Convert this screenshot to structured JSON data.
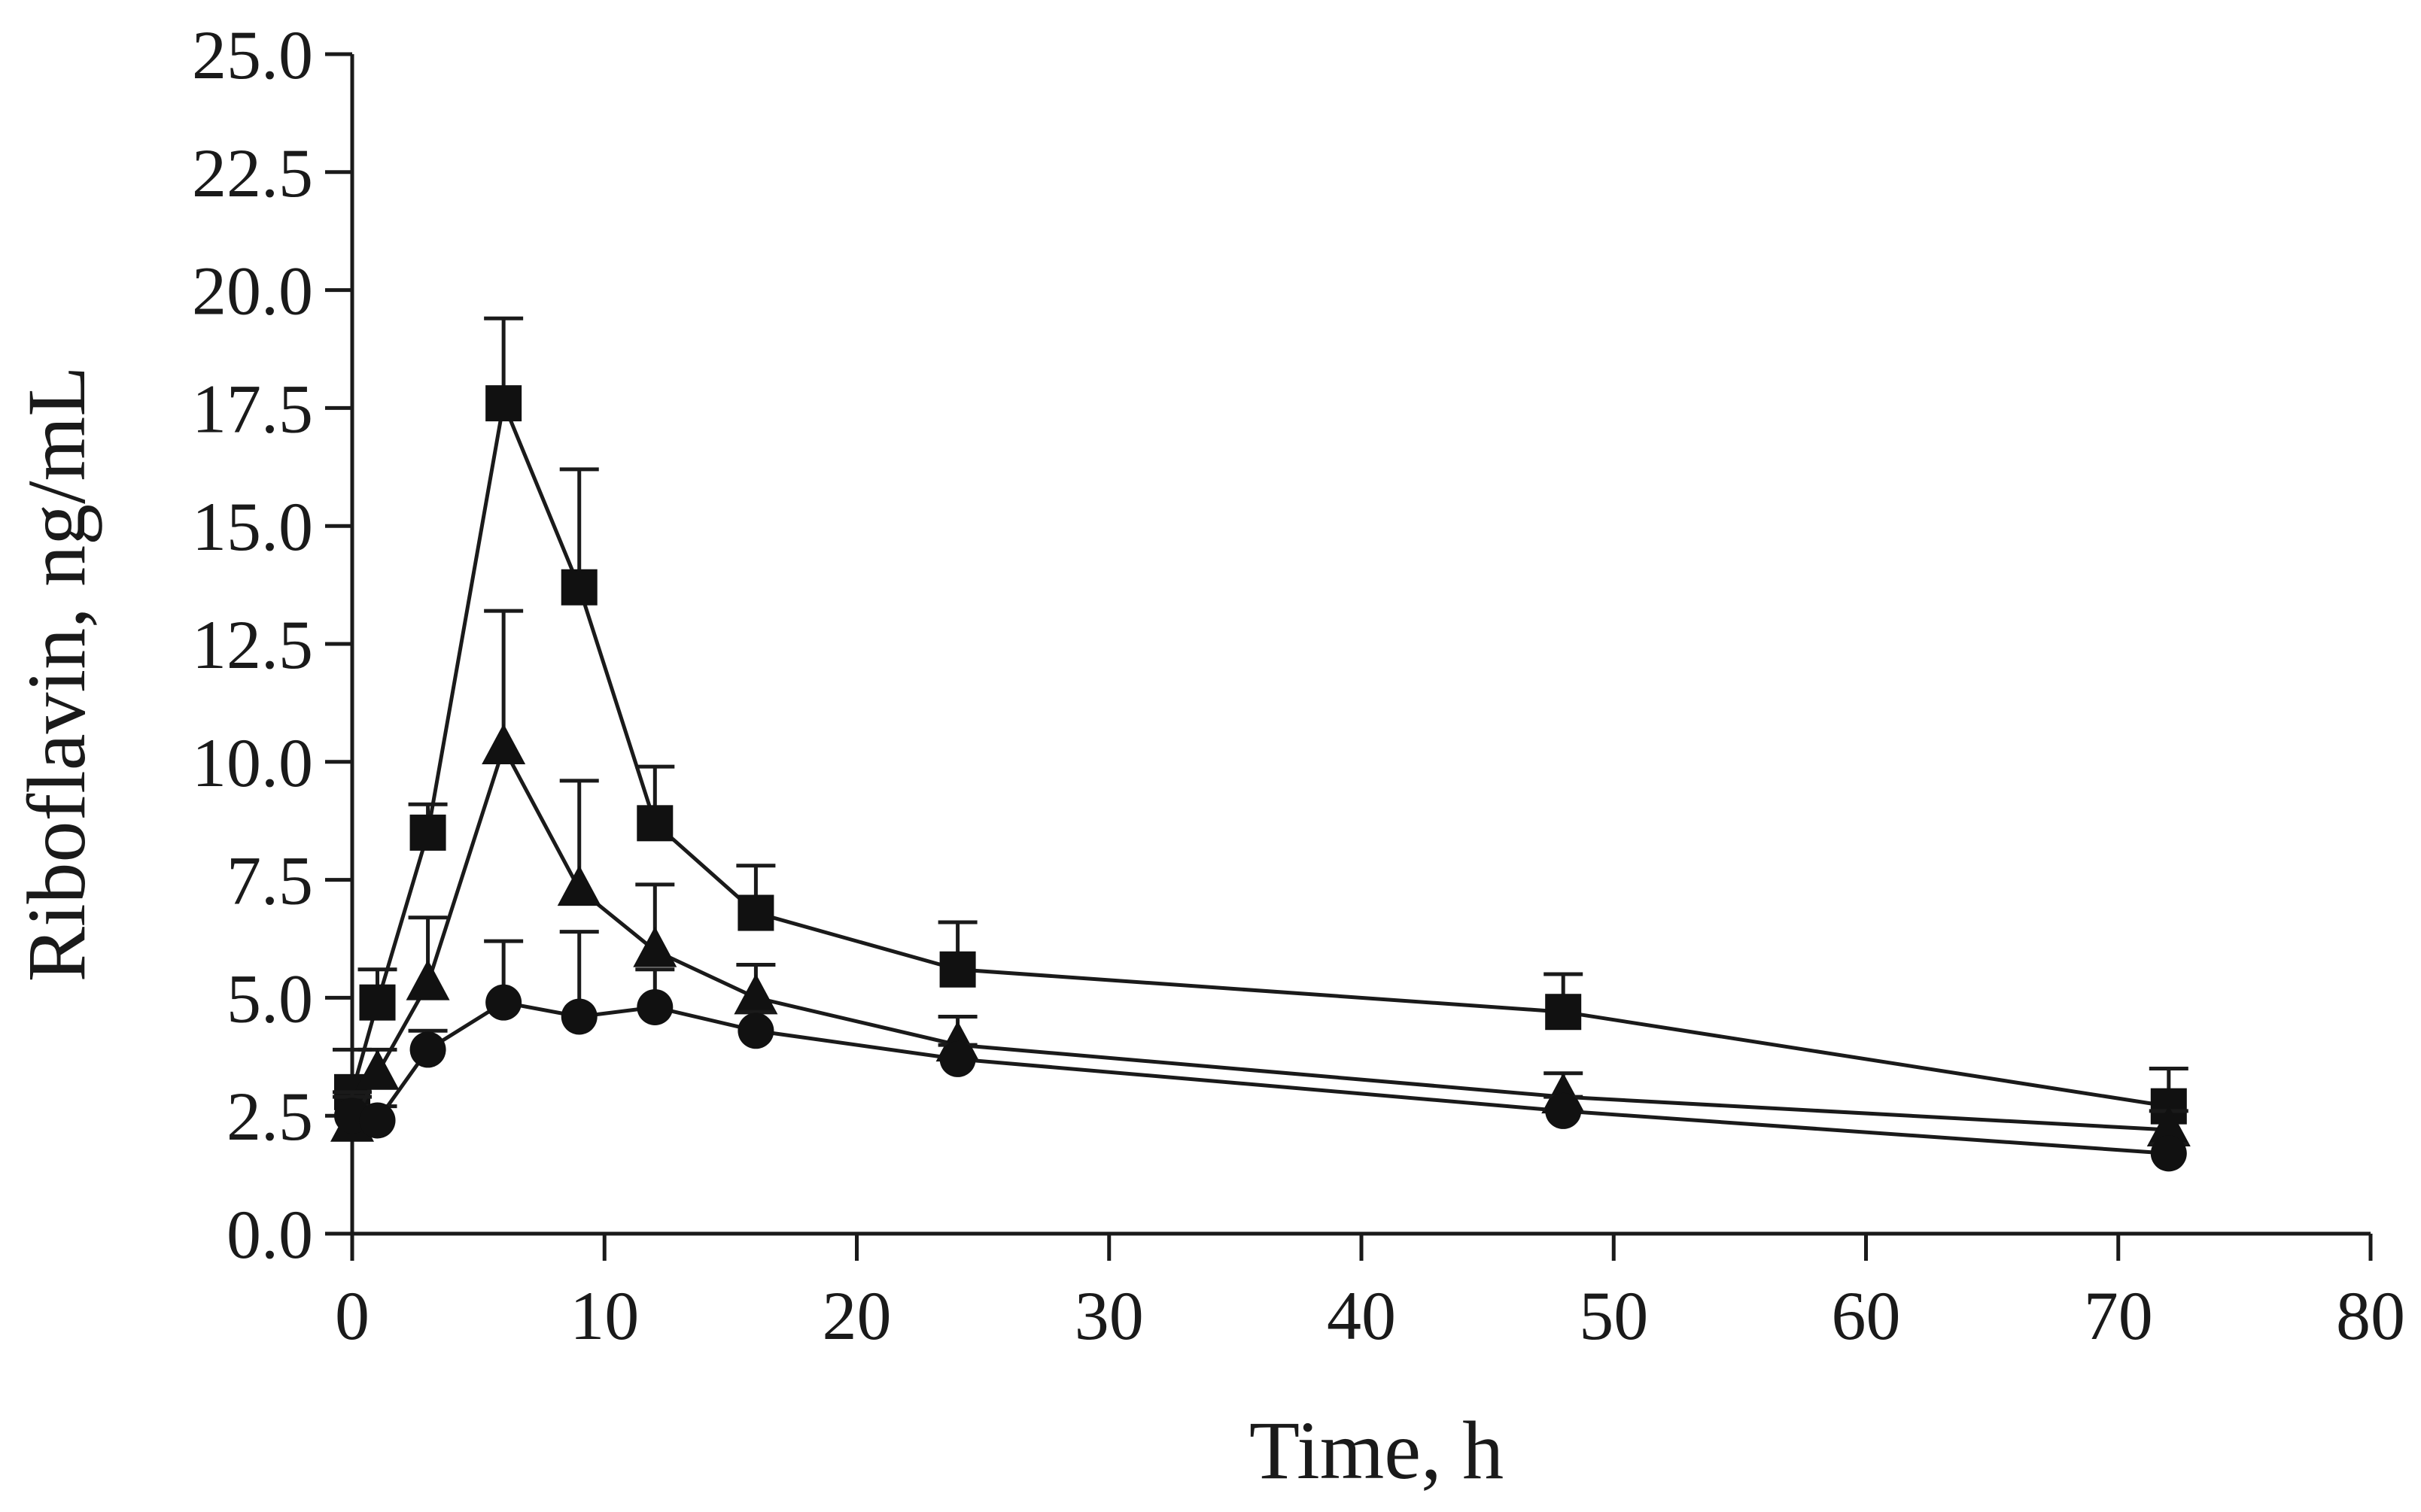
{
  "chart_data": {
    "type": "line",
    "title": "",
    "xlabel": "Time, h",
    "ylabel": "Riboflavin, ng/mL",
    "xlim": [
      0,
      80
    ],
    "ylim": [
      0,
      25
    ],
    "xticks": [
      0,
      10,
      20,
      30,
      40,
      50,
      60,
      70,
      80
    ],
    "xtick_labels": [
      "0",
      "10",
      "20",
      "30",
      "40",
      "50",
      "60",
      "70",
      "80"
    ],
    "yticks": [
      0,
      2.5,
      5,
      7.5,
      10,
      12.5,
      15,
      17.5,
      20,
      22.5,
      25
    ],
    "ytick_labels": [
      "0.0",
      "2.5",
      "5.0",
      "7.5",
      "10.0",
      "12.5",
      "15.0",
      "17.5",
      "20.0",
      "22.5",
      "25.0"
    ],
    "grid": false,
    "legend": "none",
    "x": [
      0,
      1,
      3,
      6,
      9,
      12,
      16,
      24,
      48,
      72
    ],
    "series": [
      {
        "name": "square",
        "marker": "square",
        "values": [
          3.0,
          4.9,
          8.5,
          17.6,
          13.7,
          8.7,
          6.8,
          5.6,
          4.7,
          2.7
        ],
        "errors": [
          0.9,
          0.7,
          0.6,
          1.8,
          2.5,
          1.2,
          1.0,
          1.0,
          0.8,
          0.8
        ]
      },
      {
        "name": "triangle",
        "marker": "triangle",
        "values": [
          2.3,
          3.4,
          5.3,
          10.3,
          7.3,
          6.0,
          5.0,
          4.0,
          2.9,
          2.2
        ],
        "errors": [
          0.6,
          0.5,
          1.4,
          2.9,
          2.3,
          1.4,
          0.7,
          0.6,
          0.5,
          0.4
        ]
      },
      {
        "name": "circle",
        "marker": "circle",
        "values": [
          2.5,
          2.4,
          3.9,
          4.9,
          4.6,
          4.8,
          4.3,
          3.7,
          2.6,
          1.7
        ],
        "errors": [
          0.5,
          0.3,
          0.4,
          1.3,
          1.8,
          0.8,
          0.4,
          0.3,
          0.3,
          0.2
        ]
      }
    ],
    "colors": {
      "ink": "#111111",
      "background": "#ffffff"
    }
  }
}
